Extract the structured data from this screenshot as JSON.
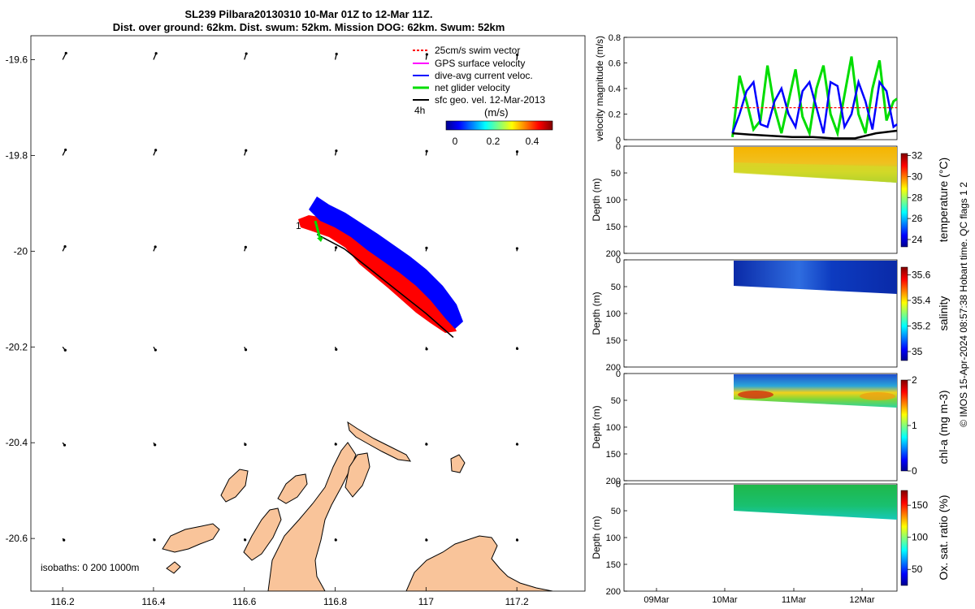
{
  "header": {
    "title_line1": "SL239 Pilbara20130310 10-Mar 01Z to 12-Mar 11Z.",
    "title_line2": "Dist. over ground: 62km. Dist. swum: 52km. Mission DOG: 62km. Swum: 52km"
  },
  "footer": {
    "copyright": "© IMOS 15-Apr-2024 08:57:38 Hobart time. QC flags 1  2"
  },
  "colors": {
    "land": "#f9c49a",
    "swim_vector": "#ff0000",
    "gps_velocity": "#ff00ff",
    "dive_avg_current": "#0000ff",
    "net_glider_velocity": "#00dd00",
    "sfc_geo_velocity": "#000000"
  },
  "chart_data": [
    {
      "type": "map",
      "xticks": [
        116.2,
        116.4,
        116.6,
        116.8,
        117,
        117.2
      ],
      "yticks": [
        -19.6,
        -19.8,
        -20,
        -20.2,
        -20.4,
        -20.6
      ],
      "xlim": [
        116.13,
        117.35
      ],
      "ylim": [
        -20.71,
        -19.55
      ],
      "legend": [
        {
          "label": "25cm/s swim vector",
          "color": "#ff0000"
        },
        {
          "label": "GPS surface velocity",
          "color": "#ff00ff"
        },
        {
          "label": "dive-avg current veloc.",
          "color": "#0000ff"
        },
        {
          "label": "net glider velocity",
          "color": "#00dd00"
        },
        {
          "label": "sfc geo. vel. 12-Mar-2013",
          "color": "#000000"
        }
      ],
      "interval_label": "4h",
      "colorbar": {
        "label": "(m/s)",
        "ticks": [
          0,
          0.2,
          0.4
        ],
        "range": [
          0,
          0.5
        ]
      },
      "start_label": "1",
      "isobaths_label": "isobaths: 0   200  1000m",
      "track": {
        "lon": [
          116.76,
          116.82,
          116.88,
          116.94,
          117.0,
          117.06
        ],
        "lat": [
          -19.965,
          -19.995,
          -20.04,
          -20.085,
          -20.13,
          -20.18
        ]
      },
      "surface_vectors": {
        "lon": [
          116.2,
          116.4,
          116.6,
          116.8,
          117.0,
          117.2
        ],
        "lat": [
          -19.6,
          -19.8,
          -20.0,
          -20.2,
          -20.4,
          -20.6
        ]
      }
    },
    {
      "type": "line",
      "ylabel": "velocity magnitude (m/s)",
      "ylim": [
        0,
        0.8
      ],
      "yticks": [
        0,
        0.2,
        0.4,
        0.6,
        0.8
      ],
      "xlim": [
        8.5,
        12.4
      ],
      "series": [
        {
          "color": "#00dd00",
          "x": [
            10.05,
            10.15,
            10.25,
            10.35,
            10.45,
            10.55,
            10.65,
            10.75,
            10.85,
            10.95,
            11.05,
            11.15,
            11.25,
            11.35,
            11.45,
            11.55,
            11.65,
            11.75,
            11.85,
            11.95,
            12.05,
            12.15,
            12.25,
            12.35,
            12.4
          ],
          "y": [
            0.02,
            0.5,
            0.3,
            0.08,
            0.15,
            0.58,
            0.25,
            0.05,
            0.3,
            0.55,
            0.18,
            0.05,
            0.4,
            0.58,
            0.2,
            0.05,
            0.35,
            0.65,
            0.2,
            0.05,
            0.4,
            0.62,
            0.15,
            0.3,
            0.32
          ]
        },
        {
          "color": "#0000ff",
          "x": [
            10.05,
            10.15,
            10.25,
            10.35,
            10.45,
            10.55,
            10.65,
            10.75,
            10.85,
            10.95,
            11.05,
            11.15,
            11.25,
            11.35,
            11.45,
            11.55,
            11.65,
            11.75,
            11.85,
            11.95,
            12.05,
            12.15,
            12.25,
            12.35,
            12.4
          ],
          "y": [
            0.05,
            0.2,
            0.38,
            0.45,
            0.12,
            0.1,
            0.3,
            0.4,
            0.2,
            0.1,
            0.38,
            0.45,
            0.25,
            0.05,
            0.45,
            0.42,
            0.1,
            0.2,
            0.45,
            0.3,
            0.08,
            0.45,
            0.38,
            0.1,
            0.12
          ]
        },
        {
          "color": "#ff0000",
          "x": [
            10.05,
            12.4
          ],
          "y": [
            0.25,
            0.25
          ]
        },
        {
          "color": "#000000",
          "x": [
            10.05,
            10.3,
            10.6,
            10.9,
            11.2,
            11.5,
            11.8,
            12.1,
            12.4
          ],
          "y": [
            0.05,
            0.04,
            0.03,
            0.02,
            0.02,
            0.01,
            0.01,
            0.05,
            0.07
          ]
        }
      ]
    },
    {
      "type": "heatmap",
      "ylabel": "Depth (m)",
      "colorbar_label": "temperature (°C)",
      "colorbar_ticks": [
        24,
        26,
        28,
        30,
        32
      ],
      "yticks": [
        0,
        50,
        100,
        150,
        200
      ]
    },
    {
      "type": "heatmap",
      "ylabel": "Depth (m)",
      "colorbar_label": "salinity",
      "colorbar_ticks": [
        "35",
        "35.2",
        "35.4",
        "35.6"
      ],
      "yticks": [
        0,
        50,
        100,
        150,
        200
      ]
    },
    {
      "type": "heatmap",
      "ylabel": "Depth (m)",
      "colorbar_label": "chl-a (mg m-3)",
      "colorbar_ticks": [
        0,
        1,
        2
      ],
      "yticks": [
        0,
        50,
        100,
        150,
        200
      ]
    },
    {
      "type": "heatmap",
      "ylabel": "Depth (m)",
      "colorbar_label": "Ox. sat. ratio (%)",
      "colorbar_ticks": [
        50,
        100,
        150
      ],
      "yticks": [
        0,
        50,
        100,
        150,
        200
      ],
      "xticks": [
        "09Mar",
        "10Mar",
        "11Mar",
        "12Mar"
      ]
    }
  ]
}
